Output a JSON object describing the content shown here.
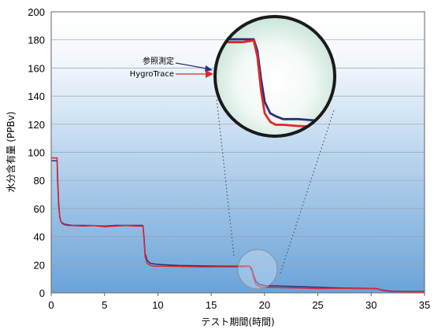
{
  "chart_data": {
    "type": "line",
    "title": "",
    "xlabel": "テスト期間(時間)",
    "ylabel": "水分含有量 (PPBv)",
    "xlim": [
      0,
      35
    ],
    "ylim": [
      0,
      200
    ],
    "x_ticks": [
      "0",
      "5",
      "10",
      "15",
      "20",
      "25",
      "30",
      "35"
    ],
    "y_ticks": [
      "0",
      "20",
      "40",
      "60",
      "80",
      "100",
      "120",
      "140",
      "160",
      "180",
      "200"
    ],
    "grid": "horizontal",
    "colors": {
      "reference": "#2b2f7a",
      "hygrotrace": "#e2262b",
      "background_top": "#ffffff",
      "background_bottom": "#6aa3d9"
    },
    "series": [
      {
        "name": "参照測定",
        "x": [
          0,
          0.55,
          0.6,
          0.7,
          0.8,
          0.9,
          1.0,
          1.2,
          1.5,
          2.0,
          3,
          4,
          5,
          6,
          7,
          8,
          8.6,
          8.7,
          8.8,
          9.0,
          9.3,
          9.7,
          10.5,
          12,
          14,
          16,
          18,
          18.6,
          18.8,
          19.0,
          19.2,
          19.5,
          19.8,
          20.2,
          21,
          23,
          25,
          27,
          29,
          30.5,
          31,
          31.5,
          32,
          33,
          34,
          35
        ],
        "y": [
          94,
          94,
          80,
          62,
          54,
          51,
          50,
          49,
          48.5,
          48,
          48,
          47.8,
          47.5,
          48,
          48,
          48,
          48,
          40,
          28,
          23,
          21,
          20.5,
          20,
          19.5,
          19.2,
          19,
          19,
          19,
          17,
          12,
          8,
          6,
          5.5,
          5,
          5,
          4.5,
          4,
          3.5,
          3.2,
          3,
          2,
          1.5,
          1.2,
          1,
          1,
          1
        ]
      },
      {
        "name": "HygroTrace",
        "x": [
          0,
          0.55,
          0.6,
          0.7,
          0.8,
          0.9,
          1.0,
          1.2,
          1.5,
          2.0,
          3,
          4,
          5,
          6,
          7,
          8,
          8.6,
          8.7,
          8.8,
          9.0,
          9.3,
          9.7,
          10.5,
          12,
          14,
          16,
          18,
          18.6,
          18.8,
          19.0,
          19.2,
          19.5,
          19.8,
          20.2,
          21,
          23,
          25,
          27,
          29,
          30.5,
          31,
          31.5,
          32,
          33,
          34,
          35
        ],
        "y": [
          96,
          96,
          85,
          65,
          55,
          51,
          49.5,
          48.5,
          48,
          47.8,
          47.5,
          47.8,
          47,
          47.5,
          47.8,
          47.5,
          47.5,
          38,
          26,
          21,
          19.5,
          19,
          19,
          18.8,
          18.5,
          18.5,
          18.5,
          18.8,
          16,
          10,
          6,
          4.5,
          4,
          4,
          3.8,
          3.5,
          3,
          3.2,
          3,
          3,
          1.8,
          1.2,
          1,
          0.8,
          0.8,
          0.8
        ]
      }
    ],
    "annotation": {
      "type": "magnifier",
      "center_x": 19.3,
      "center_y": 17,
      "legend": [
        "参照測定",
        "HygroTrace"
      ]
    }
  }
}
